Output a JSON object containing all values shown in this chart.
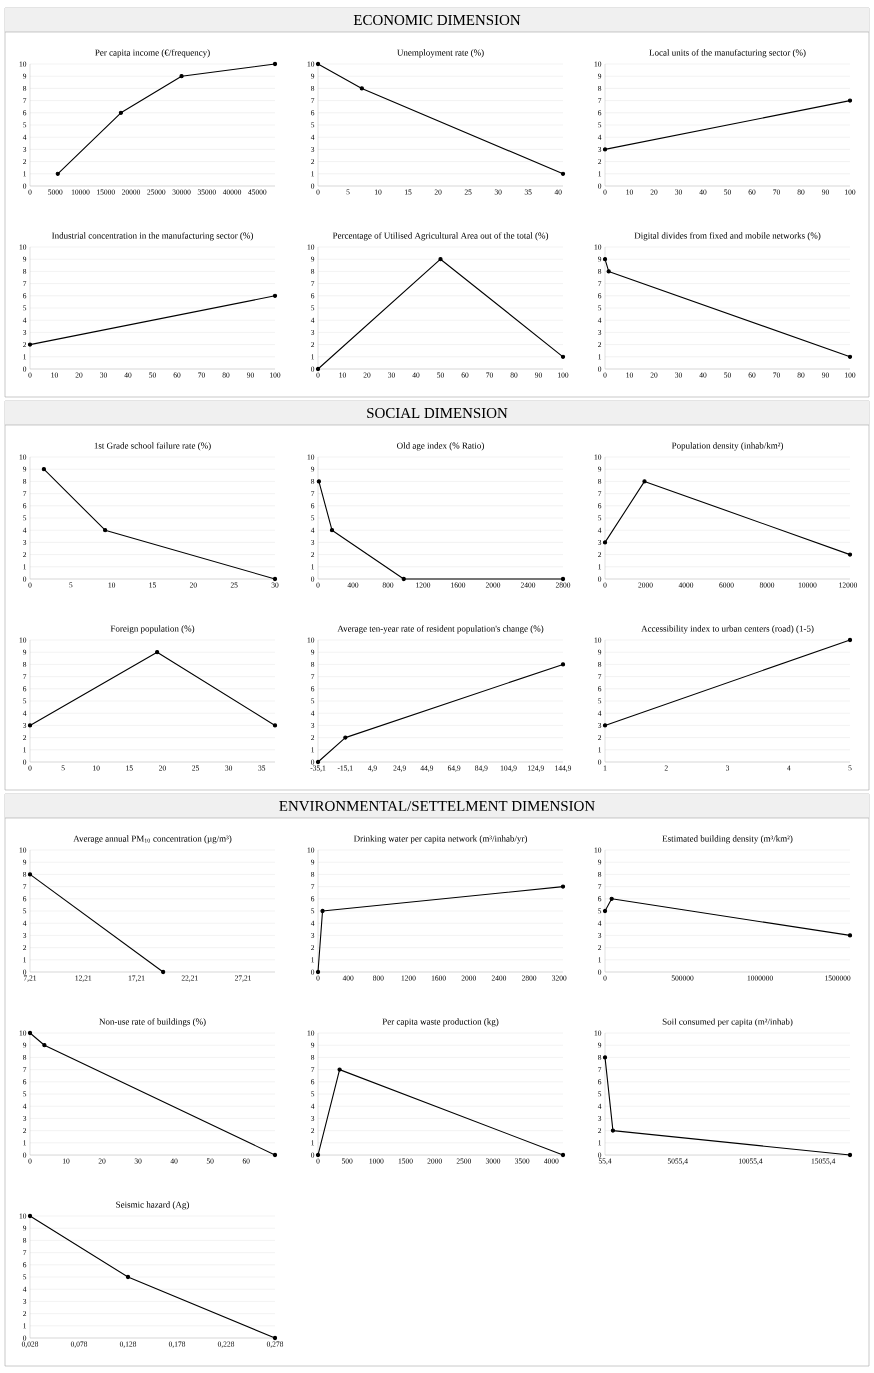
{
  "chart_data": [
    {
      "type": "other",
      "title": "ECONOMIC DIMENSION"
    },
    {
      "type": "line",
      "title": "Per capita income (€/frequency)",
      "x": [
        5500,
        18000,
        30000,
        48500
      ],
      "values": [
        1,
        6,
        9,
        10
      ],
      "color": "#000000",
      "xlim": [
        0,
        48500
      ],
      "ylim": [
        0,
        10
      ],
      "xticks": [
        0,
        5000,
        10000,
        15000,
        20000,
        25000,
        30000,
        35000,
        40000,
        45000
      ],
      "yticks": [
        0,
        1,
        2,
        3,
        4,
        5,
        6,
        7,
        8,
        9,
        10
      ],
      "grid": "y",
      "marker": "circle"
    },
    {
      "type": "line",
      "title": "Unemployment rate (%)",
      "x": [
        0,
        7.3,
        40.8
      ],
      "values": [
        10,
        8,
        1
      ],
      "color": "#000000",
      "xlim": [
        0,
        40.8
      ],
      "ylim": [
        0,
        10
      ],
      "xticks": [
        0,
        5,
        10,
        15,
        20,
        25,
        30,
        35,
        40
      ],
      "yticks": [
        0,
        1,
        2,
        3,
        4,
        5,
        6,
        7,
        8,
        9,
        10
      ],
      "grid": "y",
      "marker": "circle"
    },
    {
      "type": "line",
      "title": "Local units of the manufacturing sector (%)",
      "x": [
        0,
        100
      ],
      "values": [
        3,
        7
      ],
      "color": "#000000",
      "xlim": [
        0,
        100
      ],
      "ylim": [
        0,
        10
      ],
      "xticks": [
        0,
        10,
        20,
        30,
        40,
        50,
        60,
        70,
        80,
        90,
        100
      ],
      "yticks": [
        0,
        1,
        2,
        3,
        4,
        5,
        6,
        7,
        8,
        9,
        10
      ],
      "grid": "y",
      "marker": "circle"
    },
    {
      "type": "line",
      "title": "Industrial concentration in the manufacturing sector (%)",
      "x": [
        0,
        100
      ],
      "values": [
        2,
        6
      ],
      "color": "#000000",
      "xlim": [
        0,
        100
      ],
      "ylim": [
        0,
        10
      ],
      "xticks": [
        0,
        10,
        20,
        30,
        40,
        50,
        60,
        70,
        80,
        90,
        100
      ],
      "yticks": [
        0,
        1,
        2,
        3,
        4,
        5,
        6,
        7,
        8,
        9,
        10
      ],
      "grid": "y",
      "marker": "circle"
    },
    {
      "type": "line",
      "title": "Percentage of Utilised Agricultural Area out of the total (%)",
      "x": [
        0,
        50,
        100
      ],
      "values": [
        0,
        9,
        1
      ],
      "color": "#000000",
      "xlim": [
        0,
        100
      ],
      "ylim": [
        0,
        10
      ],
      "xticks": [
        0,
        10,
        20,
        30,
        40,
        50,
        60,
        70,
        80,
        90,
        100
      ],
      "yticks": [
        0,
        1,
        2,
        3,
        4,
        5,
        6,
        7,
        8,
        9,
        10
      ],
      "grid": "y",
      "marker": "circle"
    },
    {
      "type": "line",
      "title": "Digital divides from fixed and mobile networks (%)",
      "x": [
        0,
        1.5,
        100
      ],
      "values": [
        9,
        8,
        1
      ],
      "color": "#000000",
      "xlim": [
        0,
        100
      ],
      "ylim": [
        0,
        10
      ],
      "xticks": [
        0,
        10,
        20,
        30,
        40,
        50,
        60,
        70,
        80,
        90,
        100
      ],
      "yticks": [
        0,
        1,
        2,
        3,
        4,
        5,
        6,
        7,
        8,
        9,
        10
      ],
      "grid": "y",
      "marker": "circle"
    },
    {
      "type": "other",
      "title": "SOCIAL DIMENSION"
    },
    {
      "type": "line",
      "title": "1st Grade school failure rate (%)",
      "x": [
        1.7,
        9.2,
        30
      ],
      "values": [
        9,
        4,
        0
      ],
      "color": "#000000",
      "xlim": [
        0,
        30
      ],
      "ylim": [
        0,
        10
      ],
      "xticks": [
        0,
        5,
        10,
        15,
        20,
        25,
        30
      ],
      "yticks": [
        0,
        1,
        2,
        3,
        4,
        5,
        6,
        7,
        8,
        9,
        10
      ],
      "grid": "y",
      "marker": "circle"
    },
    {
      "type": "line",
      "title": "Old age index (% Ratio)",
      "x": [
        10,
        160,
        980,
        2800
      ],
      "values": [
        8,
        4,
        0,
        0
      ],
      "color": "#000000",
      "xlim": [
        0,
        2800
      ],
      "ylim": [
        0,
        10
      ],
      "xticks": [
        0,
        400,
        800,
        1200,
        1600,
        2000,
        2400,
        2800
      ],
      "yticks": [
        0,
        1,
        2,
        3,
        4,
        5,
        6,
        7,
        8,
        9,
        10
      ],
      "grid": "y",
      "marker": "circle"
    },
    {
      "type": "line",
      "title": "Population density (inhab/km²)",
      "x": [
        0,
        1950,
        12100
      ],
      "values": [
        3,
        8,
        2
      ],
      "color": "#000000",
      "xlim": [
        0,
        12100
      ],
      "ylim": [
        0,
        10
      ],
      "xticks": [
        0,
        2000,
        4000,
        6000,
        8000,
        10000,
        12000
      ],
      "yticks": [
        0,
        1,
        2,
        3,
        4,
        5,
        6,
        7,
        8,
        9,
        10
      ],
      "grid": "y",
      "marker": "circle"
    },
    {
      "type": "line",
      "title": "Foreign population (%)",
      "x": [
        0,
        19.2,
        37
      ],
      "values": [
        3,
        9,
        3
      ],
      "color": "#000000",
      "xlim": [
        0,
        37
      ],
      "ylim": [
        0,
        10
      ],
      "xticks": [
        0,
        5,
        10,
        15,
        20,
        25,
        30,
        35
      ],
      "yticks": [
        0,
        1,
        2,
        3,
        4,
        5,
        6,
        7,
        8,
        9,
        10
      ],
      "grid": "y",
      "marker": "circle"
    },
    {
      "type": "line",
      "title": "Average ten-year rate of resident population's change (%)",
      "x": [
        -35.1,
        -15,
        144.9
      ],
      "values": [
        0,
        2,
        8
      ],
      "color": "#000000",
      "xlim": [
        -35.1,
        144.9
      ],
      "ylim": [
        0,
        10
      ],
      "xticks": [
        {
          "value": -35.1,
          "label": "-35,1"
        },
        {
          "value": -15.1,
          "label": "-15,1"
        },
        {
          "value": 4.9,
          "label": "4,9"
        },
        {
          "value": 24.9,
          "label": "24,9"
        },
        {
          "value": 44.9,
          "label": "44,9"
        },
        {
          "value": 64.9,
          "label": "64,9"
        },
        {
          "value": 84.9,
          "label": "84,9"
        },
        {
          "value": 104.9,
          "label": "104,9"
        },
        {
          "value": 124.9,
          "label": "124,9"
        },
        {
          "value": 144.9,
          "label": "144,9"
        }
      ],
      "yticks": [
        0,
        1,
        2,
        3,
        4,
        5,
        6,
        7,
        8,
        9,
        10
      ],
      "grid": "y",
      "marker": "circle"
    },
    {
      "type": "line",
      "title": "Accessibility index to urban centers (road) (1-5)",
      "x": [
        1,
        5
      ],
      "values": [
        3,
        10
      ],
      "color": "#000000",
      "xlim": [
        1,
        5
      ],
      "ylim": [
        0,
        10
      ],
      "xticks": [
        1,
        2,
        3,
        4,
        5
      ],
      "yticks": [
        0,
        1,
        2,
        3,
        4,
        5,
        6,
        7,
        8,
        9,
        10
      ],
      "grid": "y",
      "marker": "circle"
    },
    {
      "type": "other",
      "title": "ENVIRONMENTAL/SETTELMENT DIMENSION"
    },
    {
      "type": "line",
      "title": "Average annual PM$_{10}$ concentration (µg/m³)",
      "x": [
        7.21,
        19.71
      ],
      "values": [
        8,
        0
      ],
      "color": "#000000",
      "xlim": [
        7.21,
        30.21
      ],
      "ylim": [
        0,
        10
      ],
      "xticks": [
        {
          "value": 7.21,
          "label": "7,21"
        },
        {
          "value": 12.21,
          "label": "12,21"
        },
        {
          "value": 17.21,
          "label": "17,21"
        },
        {
          "value": 22.21,
          "label": "22,21"
        },
        {
          "value": 27.21,
          "label": "27,21"
        }
      ],
      "yticks": [
        0,
        1,
        2,
        3,
        4,
        5,
        6,
        7,
        8,
        9,
        10
      ],
      "grid": "y",
      "marker": "circle"
    },
    {
      "type": "line",
      "title": "Drinking water per capita network (m³/inhab/yr)",
      "x": [
        0,
        60,
        3250
      ],
      "values": [
        0,
        5,
        7
      ],
      "color": "#000000",
      "xlim": [
        0,
        3250
      ],
      "ylim": [
        0,
        10
      ],
      "xticks": [
        0,
        400,
        800,
        1200,
        1600,
        2000,
        2400,
        2800,
        3200
      ],
      "yticks": [
        0,
        1,
        2,
        3,
        4,
        5,
        6,
        7,
        8,
        9,
        10
      ],
      "grid": "y",
      "marker": "circle"
    },
    {
      "type": "line",
      "title": "Estimated building density (m³/km²)",
      "x": [
        0,
        43000,
        1580000
      ],
      "values": [
        5,
        6,
        3
      ],
      "color": "#000000",
      "xlim": [
        0,
        1580000
      ],
      "ylim": [
        0,
        10
      ],
      "xticks": [
        0,
        500000,
        1000000,
        1500000
      ],
      "yticks": [
        0,
        1,
        2,
        3,
        4,
        5,
        6,
        7,
        8,
        9,
        10
      ],
      "grid": "y",
      "marker": "circle"
    },
    {
      "type": "line",
      "title": "Non-use rate of buildings (%)",
      "x": [
        0,
        4,
        68
      ],
      "values": [
        10,
        9,
        0
      ],
      "color": "#000000",
      "xlim": [
        0,
        68
      ],
      "ylim": [
        0,
        10
      ],
      "xticks": [
        0,
        10,
        20,
        30,
        40,
        50,
        60
      ],
      "yticks": [
        0,
        1,
        2,
        3,
        4,
        5,
        6,
        7,
        8,
        9,
        10
      ],
      "grid": "y",
      "marker": "circle"
    },
    {
      "type": "line",
      "title": "Per capita waste production (kg)",
      "x": [
        0,
        370,
        4200
      ],
      "values": [
        0,
        7,
        0
      ],
      "color": "#000000",
      "xlim": [
        0,
        4200
      ],
      "ylim": [
        0,
        10
      ],
      "xticks": [
        0,
        500,
        1000,
        1500,
        2000,
        2500,
        3000,
        3500,
        4000
      ],
      "yticks": [
        0,
        1,
        2,
        3,
        4,
        5,
        6,
        7,
        8,
        9,
        10
      ],
      "grid": "y",
      "marker": "circle"
    },
    {
      "type": "line",
      "title": "Soil consumed per capita (m²/inhab)",
      "x": [
        55.4,
        600,
        16900
      ],
      "values": [
        8,
        2,
        0
      ],
      "color": "#000000",
      "xlim": [
        55.4,
        16900
      ],
      "ylim": [
        0,
        10
      ],
      "xticks": [
        {
          "value": 55.4,
          "label": "55,4"
        },
        {
          "value": 5055.4,
          "label": "5055,4"
        },
        {
          "value": 10055.4,
          "label": "10055,4"
        },
        {
          "value": 15055.4,
          "label": "15055,4"
        }
      ],
      "yticks": [
        0,
        1,
        2,
        3,
        4,
        5,
        6,
        7,
        8,
        9,
        10
      ],
      "grid": "y",
      "marker": "circle"
    },
    {
      "type": "line",
      "title": "Seismic hazard (Ag)",
      "x": [
        0.028,
        0.128,
        0.278
      ],
      "values": [
        10,
        5,
        0
      ],
      "color": "#000000",
      "xlim": [
        0.028,
        0.278
      ],
      "ylim": [
        0,
        10
      ],
      "xticks": [
        {
          "value": 0.028,
          "label": "0,028"
        },
        {
          "value": 0.078,
          "label": "0,078"
        },
        {
          "value": 0.128,
          "label": "0,128"
        },
        {
          "value": 0.178,
          "label": "0,178"
        },
        {
          "value": 0.228,
          "label": "0,228"
        },
        {
          "value": 0.278,
          "label": "0,278"
        }
      ],
      "yticks": [
        0,
        1,
        2,
        3,
        4,
        5,
        6,
        7,
        8,
        9,
        10
      ],
      "grid": "y",
      "marker": "circle"
    }
  ]
}
